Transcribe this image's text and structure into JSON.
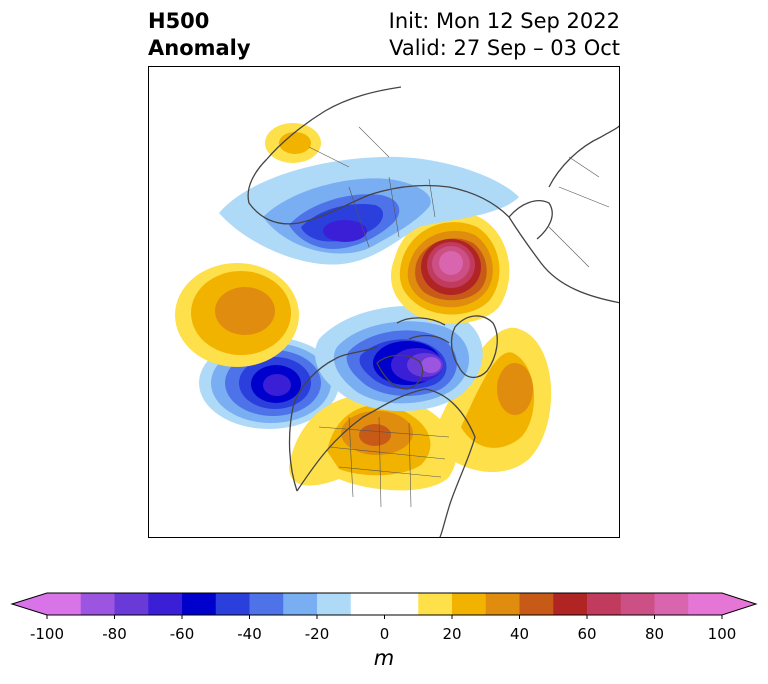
{
  "header": {
    "title_line1": "H500",
    "title_line2": "Anomaly",
    "init_label": "Init: Mon 12 Sep 2022",
    "valid_label": "Valid: 27 Sep – 03 Oct"
  },
  "map": {
    "projection": "polar stereographic (north)",
    "coastline_color": "#444444",
    "anomaly_fields": [
      {
        "region": "north-pacific-west",
        "sign": "negative",
        "peak_m": -65
      },
      {
        "region": "gulf-of-alaska",
        "sign": "positive",
        "peak_m": 40
      },
      {
        "region": "north-pacific-east",
        "sign": "positive",
        "peak_m": 30
      },
      {
        "region": "central-us",
        "sign": "positive",
        "peak_m": 50
      },
      {
        "region": "hudson-bay-greenland",
        "sign": "negative",
        "peak_m": -85
      },
      {
        "region": "central-north-atlantic",
        "sign": "positive",
        "peak_m": 40
      },
      {
        "region": "northern-europe-kara-sea",
        "sign": "positive",
        "peak_m": 90
      },
      {
        "region": "north-siberia",
        "sign": "negative",
        "peak_m": -60
      },
      {
        "region": "eastern-europe",
        "sign": "positive",
        "peak_m": 20
      }
    ]
  },
  "colorbar": {
    "unit": "m",
    "ticks": [
      "-100",
      "-80",
      "-60",
      "-40",
      "-20",
      "0",
      "20",
      "40",
      "60",
      "80",
      "100"
    ],
    "tick_values": [
      -100,
      -80,
      -60,
      -40,
      -20,
      0,
      20,
      40,
      60,
      80,
      100
    ],
    "levels_step": 10,
    "extend": "both",
    "colors": [
      "#d873e8",
      "#9b55e0",
      "#6a3ad8",
      "#3b1fd6",
      "#0000cd",
      "#2a3fdc",
      "#4e73e8",
      "#79aef2",
      "#aedaf8",
      "#ffffff",
      "#ffffff",
      "#fde04a",
      "#f2b200",
      "#e08c0e",
      "#c85a18",
      "#b02424",
      "#c03b5e",
      "#cc4f86",
      "#d965ae",
      "#e676d6"
    ]
  }
}
